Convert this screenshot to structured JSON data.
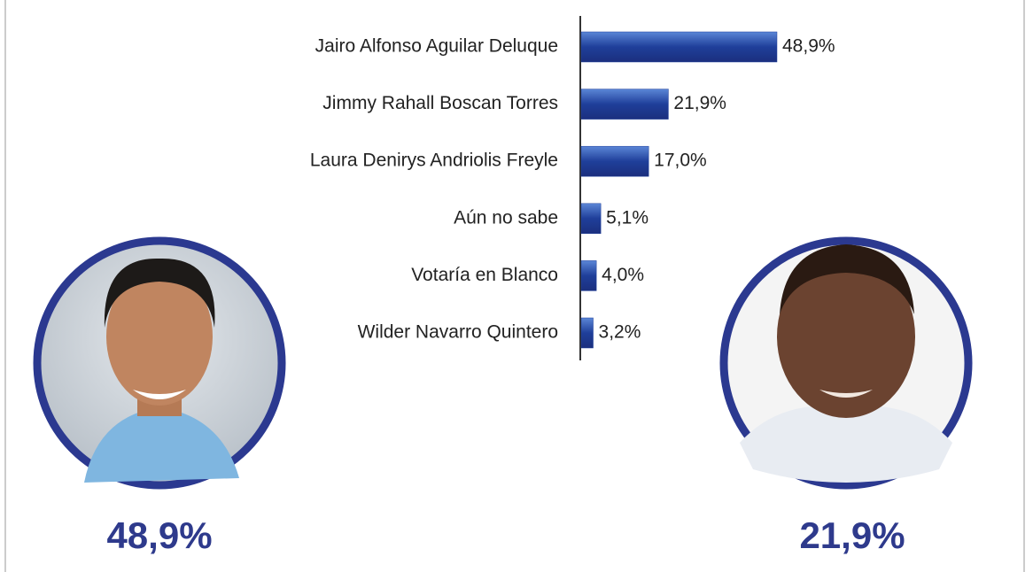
{
  "chart_data": {
    "type": "bar",
    "orientation": "horizontal",
    "categories": [
      "Jairo Alfonso Aguilar Deluque",
      "Jimmy Rahall Boscan Torres",
      "Laura Denirys Andriolis Freyle",
      "Aún no sabe",
      "Votaría en Blanco",
      "Wilder Navarro Quintero"
    ],
    "values": [
      48.9,
      21.9,
      17.0,
      5.1,
      4.0,
      3.2
    ],
    "value_labels": [
      "48,9%",
      "21,9%",
      "17,0%",
      "5,1%",
      "4,0%",
      "3,2%"
    ],
    "color": "#1f3f9a"
  }
}
